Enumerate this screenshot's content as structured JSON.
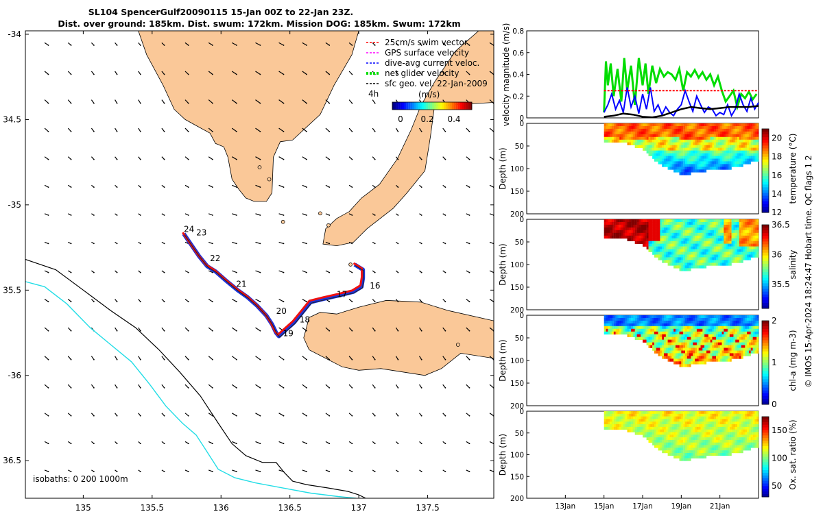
{
  "title": {
    "line1": "SL104 SpencerGulf20090115 15-Jan 00Z to 22-Jan 23Z.",
    "line2": "Dist. over ground: 185km. Dist. swum: 172km. Mission DOG: 185km. Swum: 172km"
  },
  "colors": {
    "land": "#fac898",
    "swim_vector": "#ff0000",
    "gps_velocity": "#ff00ff",
    "dive_avg": "#0000ff",
    "net_glider": "#00dd00",
    "sfc_geo": "#000000",
    "track_red": "#ee1111",
    "track_blue": "#1a33dd",
    "isobath_200": "#000000",
    "isobath_1000": "#22dde6"
  },
  "chart_data": [
    {
      "type": "line",
      "name": "map",
      "x_ticks": [
        135,
        135.5,
        136,
        136.5,
        137,
        137.5
      ],
      "y_ticks": [
        -34,
        -34.5,
        -35,
        -35.5,
        -36,
        -36.5
      ],
      "y_tick_labels": [
        "-34",
        "34.5",
        "-35",
        "35.5",
        "-36",
        "36.5"
      ],
      "xlim": [
        134.58,
        137.98
      ],
      "ylim": [
        -36.72,
        -33.98
      ],
      "legend": {
        "items": [
          "25cm/s swim vector",
          "GPS surface velocity",
          "dive-avg current veloc.",
          "net glider velocity",
          "sfc geo. vel. 22-Jan-2009"
        ],
        "placement": "top-right",
        "colorbar_label": "(m/s)",
        "colorbar_ticks": [
          "0",
          "0.2",
          "0.4"
        ],
        "time_label": "4h"
      },
      "isobaths_label": "isobaths: 0   200  1000m",
      "day_labels": [
        {
          "text": "24",
          "lon": 135.73,
          "lat": -35.16
        },
        {
          "text": "23",
          "lon": 135.82,
          "lat": -35.18
        },
        {
          "text": "22",
          "lon": 135.92,
          "lat": -35.33
        },
        {
          "text": "21",
          "lon": 136.11,
          "lat": -35.48
        },
        {
          "text": "20",
          "lon": 136.4,
          "lat": -35.64
        },
        {
          "text": "19",
          "lon": 136.45,
          "lat": -35.77
        },
        {
          "text": "18",
          "lon": 136.57,
          "lat": -35.69
        },
        {
          "text": "17",
          "lon": 136.84,
          "lat": -35.54
        },
        {
          "text": "16",
          "lon": 137.08,
          "lat": -35.49
        }
      ],
      "track": [
        [
          135.73,
          -35.17
        ],
        [
          135.78,
          -35.23
        ],
        [
          135.84,
          -35.3
        ],
        [
          135.9,
          -35.36
        ],
        [
          135.96,
          -35.39
        ],
        [
          136.03,
          -35.44
        ],
        [
          136.12,
          -35.5
        ],
        [
          136.19,
          -35.54
        ],
        [
          136.26,
          -35.59
        ],
        [
          136.33,
          -35.65
        ],
        [
          136.37,
          -35.7
        ],
        [
          136.4,
          -35.75
        ],
        [
          136.42,
          -35.77
        ],
        [
          136.46,
          -35.74
        ],
        [
          136.53,
          -35.69
        ],
        [
          136.59,
          -35.63
        ],
        [
          136.65,
          -35.57
        ],
        [
          136.75,
          -35.55
        ],
        [
          136.86,
          -35.53
        ],
        [
          136.96,
          -35.51
        ],
        [
          137.02,
          -35.48
        ],
        [
          137.03,
          -35.43
        ],
        [
          137.03,
          -35.38
        ],
        [
          136.97,
          -35.35
        ]
      ],
      "land_masses": {
        "yorke_peninsula": [
          [
            135.4,
            -33.98
          ],
          [
            137.0,
            -33.98
          ],
          [
            136.95,
            -34.12
          ],
          [
            136.82,
            -34.3
          ],
          [
            136.72,
            -34.47
          ],
          [
            136.52,
            -34.62
          ],
          [
            136.43,
            -34.63
          ],
          [
            136.38,
            -34.72
          ],
          [
            136.37,
            -34.93
          ],
          [
            136.33,
            -34.98
          ],
          [
            136.24,
            -34.98
          ],
          [
            136.18,
            -34.96
          ],
          [
            136.13,
            -34.91
          ],
          [
            136.08,
            -34.85
          ],
          [
            136.05,
            -34.72
          ],
          [
            136.02,
            -34.66
          ],
          [
            135.96,
            -34.64
          ],
          [
            135.92,
            -34.58
          ],
          [
            135.83,
            -34.54
          ],
          [
            135.74,
            -34.5
          ],
          [
            135.66,
            -34.44
          ],
          [
            135.58,
            -34.3
          ],
          [
            135.46,
            -34.12
          ]
        ],
        "fleurieu": [
          [
            137.55,
            -34.42
          ],
          [
            137.52,
            -34.6
          ],
          [
            137.48,
            -34.8
          ],
          [
            137.35,
            -34.93
          ],
          [
            137.25,
            -35.02
          ],
          [
            137.06,
            -35.14
          ],
          [
            136.96,
            -35.22
          ],
          [
            136.84,
            -35.24
          ],
          [
            136.74,
            -35.23
          ],
          [
            136.76,
            -35.14
          ],
          [
            136.84,
            -35.08
          ],
          [
            136.93,
            -35.04
          ],
          [
            137.02,
            -34.96
          ],
          [
            137.15,
            -34.88
          ],
          [
            137.28,
            -34.73
          ],
          [
            137.38,
            -34.56
          ],
          [
            137.45,
            -34.42
          ],
          [
            137.55,
            -34.28
          ],
          [
            137.7,
            -34.1
          ],
          [
            137.87,
            -33.98
          ],
          [
            137.98,
            -33.98
          ],
          [
            137.98,
            -34.4
          ]
        ],
        "kangaroo_island": [
          [
            136.64,
            -35.66
          ],
          [
            136.72,
            -35.63
          ],
          [
            136.84,
            -35.64
          ],
          [
            137.0,
            -35.6
          ],
          [
            137.2,
            -35.56
          ],
          [
            137.45,
            -35.57
          ],
          [
            137.65,
            -35.62
          ],
          [
            137.98,
            -35.68
          ],
          [
            137.98,
            -35.9
          ],
          [
            137.74,
            -35.87
          ],
          [
            137.6,
            -35.96
          ],
          [
            137.48,
            -36.0
          ],
          [
            137.32,
            -35.98
          ],
          [
            137.16,
            -35.96
          ],
          [
            137.0,
            -35.97
          ],
          [
            136.88,
            -35.95
          ],
          [
            136.76,
            -35.9
          ],
          [
            136.64,
            -35.85
          ],
          [
            136.6,
            -35.78
          ]
        ]
      },
      "isobath_200": [
        [
          134.58,
          -35.32
        ],
        [
          134.8,
          -35.38
        ],
        [
          135.0,
          -35.5
        ],
        [
          135.2,
          -35.62
        ],
        [
          135.38,
          -35.72
        ],
        [
          135.55,
          -35.85
        ],
        [
          135.7,
          -35.98
        ],
        [
          135.85,
          -36.12
        ],
        [
          135.98,
          -36.28
        ],
        [
          136.08,
          -36.4
        ],
        [
          136.18,
          -36.47
        ],
        [
          136.3,
          -36.51
        ],
        [
          136.4,
          -36.51
        ],
        [
          136.46,
          -36.57
        ],
        [
          136.52,
          -36.62
        ],
        [
          136.62,
          -36.64
        ],
        [
          136.78,
          -36.66
        ],
        [
          136.92,
          -36.68
        ],
        [
          137.0,
          -36.7
        ],
        [
          137.05,
          -36.72
        ]
      ],
      "isobath_1000": [
        [
          134.58,
          -35.45
        ],
        [
          134.72,
          -35.48
        ],
        [
          134.88,
          -35.58
        ],
        [
          135.05,
          -35.72
        ],
        [
          135.2,
          -35.82
        ],
        [
          135.35,
          -35.92
        ],
        [
          135.48,
          -36.05
        ],
        [
          135.6,
          -36.18
        ],
        [
          135.72,
          -36.28
        ],
        [
          135.82,
          -36.35
        ],
        [
          135.9,
          -36.45
        ],
        [
          135.98,
          -36.55
        ],
        [
          136.1,
          -36.6
        ],
        [
          136.25,
          -36.63
        ],
        [
          136.45,
          -36.66
        ],
        [
          136.65,
          -36.69
        ],
        [
          136.85,
          -36.71
        ],
        [
          136.98,
          -36.72
        ]
      ]
    },
    {
      "type": "line",
      "name": "velocity",
      "ylabel": "velocity magnitude (m/s)",
      "ylim": [
        0,
        0.8
      ],
      "y_ticks": [
        "0",
        "0.2",
        "0.4",
        "0.6",
        "0.8"
      ],
      "x_range_days": [
        11,
        23
      ],
      "series": [
        {
          "name": "net glider velocity",
          "color": "#00dd00",
          "x": [
            15.0,
            15.1,
            15.2,
            15.35,
            15.5,
            15.7,
            15.9,
            16.05,
            16.2,
            16.4,
            16.6,
            16.8,
            17.0,
            17.15,
            17.3,
            17.5,
            17.7,
            17.9,
            18.1,
            18.3,
            18.5,
            18.7,
            18.9,
            19.1,
            19.3,
            19.5,
            19.7,
            19.9,
            20.1,
            20.3,
            20.5,
            20.7,
            20.9,
            21.1,
            21.3,
            21.5,
            21.7,
            21.9,
            22.1,
            22.3,
            22.5,
            22.7,
            22.9
          ],
          "y": [
            0.05,
            0.52,
            0.3,
            0.5,
            0.2,
            0.45,
            0.15,
            0.55,
            0.25,
            0.48,
            0.12,
            0.55,
            0.3,
            0.5,
            0.22,
            0.48,
            0.32,
            0.45,
            0.38,
            0.42,
            0.4,
            0.35,
            0.45,
            0.25,
            0.42,
            0.38,
            0.44,
            0.37,
            0.42,
            0.35,
            0.4,
            0.3,
            0.38,
            0.25,
            0.15,
            0.2,
            0.25,
            0.1,
            0.22,
            0.18,
            0.24,
            0.17,
            0.22
          ]
        },
        {
          "name": "dive-avg current veloc.",
          "color": "#0000ff",
          "x": [
            15.0,
            15.2,
            15.4,
            15.6,
            15.8,
            16.0,
            16.2,
            16.4,
            16.6,
            16.8,
            17.0,
            17.2,
            17.4,
            17.6,
            17.8,
            18.0,
            18.2,
            18.4,
            18.6,
            18.8,
            19.0,
            19.2,
            19.4,
            19.6,
            19.8,
            20.0,
            20.2,
            20.4,
            20.6,
            20.8,
            21.0,
            21.2,
            21.4,
            21.6,
            21.8,
            22.0,
            22.2,
            22.4,
            22.6,
            22.8,
            23.0
          ],
          "y": [
            0.05,
            0.12,
            0.22,
            0.08,
            0.16,
            0.05,
            0.28,
            0.1,
            0.2,
            0.04,
            0.22,
            0.08,
            0.28,
            0.06,
            0.12,
            0.03,
            0.1,
            0.05,
            0.02,
            0.08,
            0.12,
            0.25,
            0.15,
            0.06,
            0.2,
            0.12,
            0.05,
            0.1,
            0.08,
            0.02,
            0.05,
            0.03,
            0.12,
            0.02,
            0.08,
            0.22,
            0.12,
            0.06,
            0.18,
            0.08,
            0.14
          ]
        },
        {
          "name": "sfc geo. vel. 22-Jan-2009",
          "color": "#000000",
          "x": [
            15.0,
            15.5,
            16.0,
            16.5,
            17.0,
            17.5,
            18.0,
            18.5,
            19.0,
            19.5,
            20.0,
            20.5,
            21.0,
            21.5,
            22.0,
            22.5,
            23.0
          ],
          "y": [
            0.01,
            0.02,
            0.04,
            0.03,
            0.01,
            0.005,
            0.02,
            0.05,
            0.08,
            0.1,
            0.09,
            0.08,
            0.09,
            0.1,
            0.1,
            0.1,
            0.11
          ]
        },
        {
          "name": "25cm/s swim vector",
          "color": "#ff0000",
          "x": [
            15.0,
            23.0
          ],
          "y": [
            0.25,
            0.25
          ]
        }
      ]
    },
    {
      "type": "heatmap",
      "name": "temperature",
      "ylabel": "Depth (m)",
      "colorbar_label": "temperature (°C)",
      "ylim": [
        0,
        200
      ],
      "clim": [
        12,
        21
      ],
      "colorbar_ticks": [
        "20",
        "18",
        "16",
        "14",
        "12"
      ],
      "y_ticks": [
        "0",
        "50",
        "100",
        "150",
        "200"
      ],
      "depth_profile": [
        [
          15.0,
          40
        ],
        [
          16.0,
          40
        ],
        [
          17.0,
          55
        ],
        [
          17.5,
          75
        ],
        [
          18.0,
          90
        ],
        [
          18.5,
          100
        ],
        [
          19.0,
          112
        ],
        [
          19.5,
          108
        ],
        [
          20.0,
          104
        ],
        [
          20.5,
          100
        ],
        [
          21.0,
          98
        ],
        [
          21.5,
          97
        ],
        [
          22.0,
          92
        ],
        [
          22.5,
          85
        ],
        [
          23.0,
          80
        ]
      ]
    },
    {
      "type": "heatmap",
      "name": "salinity",
      "ylabel": "Depth (m)",
      "colorbar_label": "salinity",
      "ylim": [
        0,
        200
      ],
      "clim": [
        35.1,
        36.5
      ],
      "colorbar_ticks": [
        "36.5",
        "36",
        "35.5"
      ],
      "y_ticks": [
        "0",
        "50",
        "100",
        "150",
        "200"
      ]
    },
    {
      "type": "heatmap",
      "name": "chl-a",
      "ylabel": "Depth (m)",
      "colorbar_label": "chl-a (mg m-3)",
      "ylim": [
        0,
        200
      ],
      "clim": [
        0,
        2
      ],
      "colorbar_ticks": [
        "2",
        "1",
        "0"
      ],
      "y_ticks": [
        "0",
        "50",
        "100",
        "150",
        "200"
      ]
    },
    {
      "type": "heatmap",
      "name": "oxygen",
      "ylabel": "Depth (m)",
      "colorbar_label": "Ox. sat. ratio (%)",
      "ylim": [
        0,
        200
      ],
      "clim": [
        30,
        175
      ],
      "colorbar_ticks": [
        "150",
        "100",
        "50"
      ],
      "y_ticks": [
        "0",
        "50",
        "100",
        "150",
        "200"
      ]
    }
  ],
  "x_date_ticks": [
    {
      "day": 13,
      "label": "13Jan"
    },
    {
      "day": 15,
      "label": "15Jan"
    },
    {
      "day": 17,
      "label": "17Jan"
    },
    {
      "day": 19,
      "label": "19Jan"
    },
    {
      "day": 21,
      "label": "21Jan"
    }
  ],
  "side_text": "© IMOS 15-Apr-2024 18:24:47 Hobart time. QC flags 1  2"
}
